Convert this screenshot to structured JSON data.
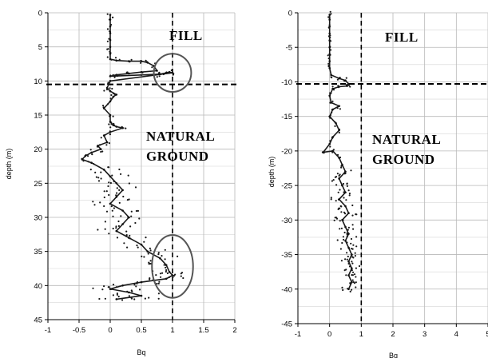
{
  "chart_data": [
    {
      "type": "scatter",
      "title": "",
      "xlabel": "Bq",
      "ylabel": "depth (m)",
      "xlim": [
        -1,
        2
      ],
      "ylim": [
        0,
        45
      ],
      "y_direction": "down",
      "x_ticks": [
        "-1",
        "-0.5",
        "0",
        "0.5",
        "1",
        "1.5",
        "2"
      ],
      "y_ticks": [
        "0",
        "5",
        "10",
        "15",
        "20",
        "25",
        "30",
        "35",
        "40",
        "45"
      ],
      "grid": true,
      "reference_lines": {
        "vertical_x": 1.0,
        "horizontal_y": 10.5
      },
      "annotations": [
        "FILL",
        "NATURAL",
        "GROUND"
      ],
      "circles": [
        {
          "cx": 1.0,
          "cy": 8.8,
          "rx": 0.3,
          "ry": 2.8
        },
        {
          "cx": 1.0,
          "cy": 37.2,
          "rx": 0.33,
          "ry": 4.6
        }
      ],
      "series": [
        {
          "points": [
            [
              0.0,
              0.3
            ],
            [
              0.0,
              1
            ],
            [
              0.0,
              2
            ],
            [
              0.0,
              3
            ],
            [
              0.0,
              4
            ],
            [
              0.0,
              5
            ],
            [
              0.0,
              6
            ],
            [
              0.0,
              6.8
            ],
            [
              0.1,
              7.0
            ],
            [
              0.3,
              7.1
            ],
            [
              0.5,
              7.1
            ],
            [
              0.6,
              7.3
            ],
            [
              0.7,
              7.8
            ],
            [
              0.75,
              8.5
            ],
            [
              0.5,
              8.7
            ],
            [
              0.3,
              8.9
            ],
            [
              0.1,
              9.1
            ],
            [
              0.0,
              9.3
            ],
            [
              0.8,
              9.0
            ],
            [
              0.9,
              8.8
            ],
            [
              0.95,
              8.7
            ],
            [
              1.0,
              8.8
            ],
            [
              0.0,
              10
            ],
            [
              -0.05,
              11
            ],
            [
              0.0,
              11.5
            ],
            [
              0.1,
              12.0
            ],
            [
              0.05,
              12.3
            ],
            [
              0.0,
              13
            ],
            [
              -0.1,
              14
            ],
            [
              0.0,
              15
            ],
            [
              0.0,
              16
            ],
            [
              0.05,
              16.5
            ],
            [
              0.1,
              16.7
            ],
            [
              0.2,
              16.9
            ],
            [
              0.0,
              17.5
            ],
            [
              -0.1,
              18
            ],
            [
              -0.05,
              19
            ],
            [
              -0.2,
              19.5
            ],
            [
              -0.15,
              20
            ],
            [
              -0.3,
              20.5
            ],
            [
              -0.4,
              21.0
            ],
            [
              -0.45,
              21.5
            ],
            [
              -0.3,
              22
            ],
            [
              -0.1,
              23
            ],
            [
              0.0,
              24
            ],
            [
              0.1,
              25
            ],
            [
              0.2,
              26
            ],
            [
              0.1,
              27
            ],
            [
              0.0,
              28
            ],
            [
              0.2,
              29
            ],
            [
              0.3,
              30
            ],
            [
              0.2,
              31
            ],
            [
              0.1,
              32
            ],
            [
              0.3,
              33
            ],
            [
              0.5,
              34
            ],
            [
              0.6,
              35
            ],
            [
              0.8,
              36
            ],
            [
              0.9,
              37
            ],
            [
              0.95,
              38
            ],
            [
              1.0,
              38.5
            ],
            [
              0.9,
              39
            ],
            [
              0.5,
              39.5
            ],
            [
              0.2,
              40
            ],
            [
              0.0,
              40.5
            ],
            [
              0.3,
              41
            ],
            [
              0.5,
              41.5
            ],
            [
              0.1,
              42
            ]
          ]
        }
      ]
    },
    {
      "type": "scatter",
      "title": "",
      "xlabel": "Bq",
      "ylabel": "depth (m)",
      "xlim": [
        -1,
        5
      ],
      "ylim": [
        -45,
        0
      ],
      "x_ticks": [
        "-1",
        "0",
        "1",
        "2",
        "3",
        "4",
        "5"
      ],
      "y_ticks": [
        "0",
        "-5",
        "-10",
        "-15",
        "-20",
        "-25",
        "-30",
        "-35",
        "-40",
        "-45"
      ],
      "grid": true,
      "reference_lines": {
        "vertical_x": 1.0,
        "horizontal_y": -10.3
      },
      "annotations": [
        "FILL",
        "NATURAL",
        "GROUND"
      ],
      "series": [
        {
          "points": [
            [
              0.0,
              -0.3
            ],
            [
              0.0,
              -1
            ],
            [
              0.0,
              -2
            ],
            [
              0.0,
              -3
            ],
            [
              0.0,
              -4
            ],
            [
              0.0,
              -5
            ],
            [
              0.0,
              -6
            ],
            [
              0.0,
              -7
            ],
            [
              0.0,
              -8
            ],
            [
              0.05,
              -9
            ],
            [
              0.3,
              -9.5
            ],
            [
              0.5,
              -9.8
            ],
            [
              0.6,
              -10.3
            ],
            [
              0.55,
              -10.6
            ],
            [
              0.3,
              -10.7
            ],
            [
              0.1,
              -11
            ],
            [
              0.0,
              -12
            ],
            [
              0.05,
              -13
            ],
            [
              0.3,
              -13.5
            ],
            [
              0.1,
              -14
            ],
            [
              0.0,
              -15
            ],
            [
              0.2,
              -16
            ],
            [
              0.3,
              -17
            ],
            [
              0.1,
              -18
            ],
            [
              0.0,
              -19
            ],
            [
              -0.2,
              -20.2
            ],
            [
              0.1,
              -20
            ],
            [
              0.3,
              -21
            ],
            [
              0.4,
              -22
            ],
            [
              0.5,
              -23
            ],
            [
              0.3,
              -24
            ],
            [
              0.4,
              -25
            ],
            [
              0.5,
              -26
            ],
            [
              0.3,
              -27
            ],
            [
              0.5,
              -28
            ],
            [
              0.6,
              -29
            ],
            [
              0.4,
              -30
            ],
            [
              0.5,
              -31
            ],
            [
              0.6,
              -32
            ],
            [
              0.5,
              -33
            ],
            [
              0.6,
              -34
            ],
            [
              0.7,
              -35
            ],
            [
              0.6,
              -36
            ],
            [
              0.7,
              -37
            ],
            [
              0.6,
              -38
            ],
            [
              0.7,
              -39
            ],
            [
              0.6,
              -40
            ]
          ]
        }
      ]
    }
  ]
}
